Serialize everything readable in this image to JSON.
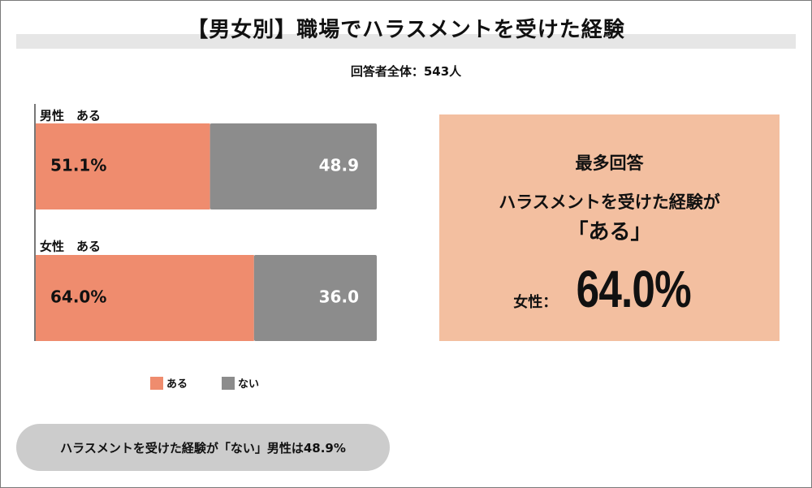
{
  "title": "【男女別】職場でハラスメントを受けた経験",
  "subtitle": "回答者全体：543人",
  "chart_data": {
    "type": "bar",
    "orientation": "horizontal",
    "stacked": true,
    "categories": [
      "男性　ある",
      "女性　ある"
    ],
    "series": [
      {
        "name": "ある",
        "color": "#ef8c6e",
        "values": [
          51.1,
          64.0
        ],
        "labels": [
          "51.1%",
          "64.0%"
        ]
      },
      {
        "name": "ない",
        "color": "#8c8c8c",
        "values": [
          48.9,
          36.0
        ],
        "labels": [
          "48.9",
          "36.0"
        ]
      }
    ],
    "xlim": [
      0,
      100
    ]
  },
  "legend": [
    {
      "label": "ある",
      "color": "#ef8c6e"
    },
    {
      "label": "ない",
      "color": "#8c8c8c"
    }
  ],
  "callout": {
    "heading": "最多回答",
    "line1": "ハラスメントを受けた経験が",
    "line2": "「ある」",
    "stat_label": "女性：",
    "stat_value": "64.0%"
  },
  "note": "ハラスメントを受けた経験が「ない」男性は48.9%"
}
